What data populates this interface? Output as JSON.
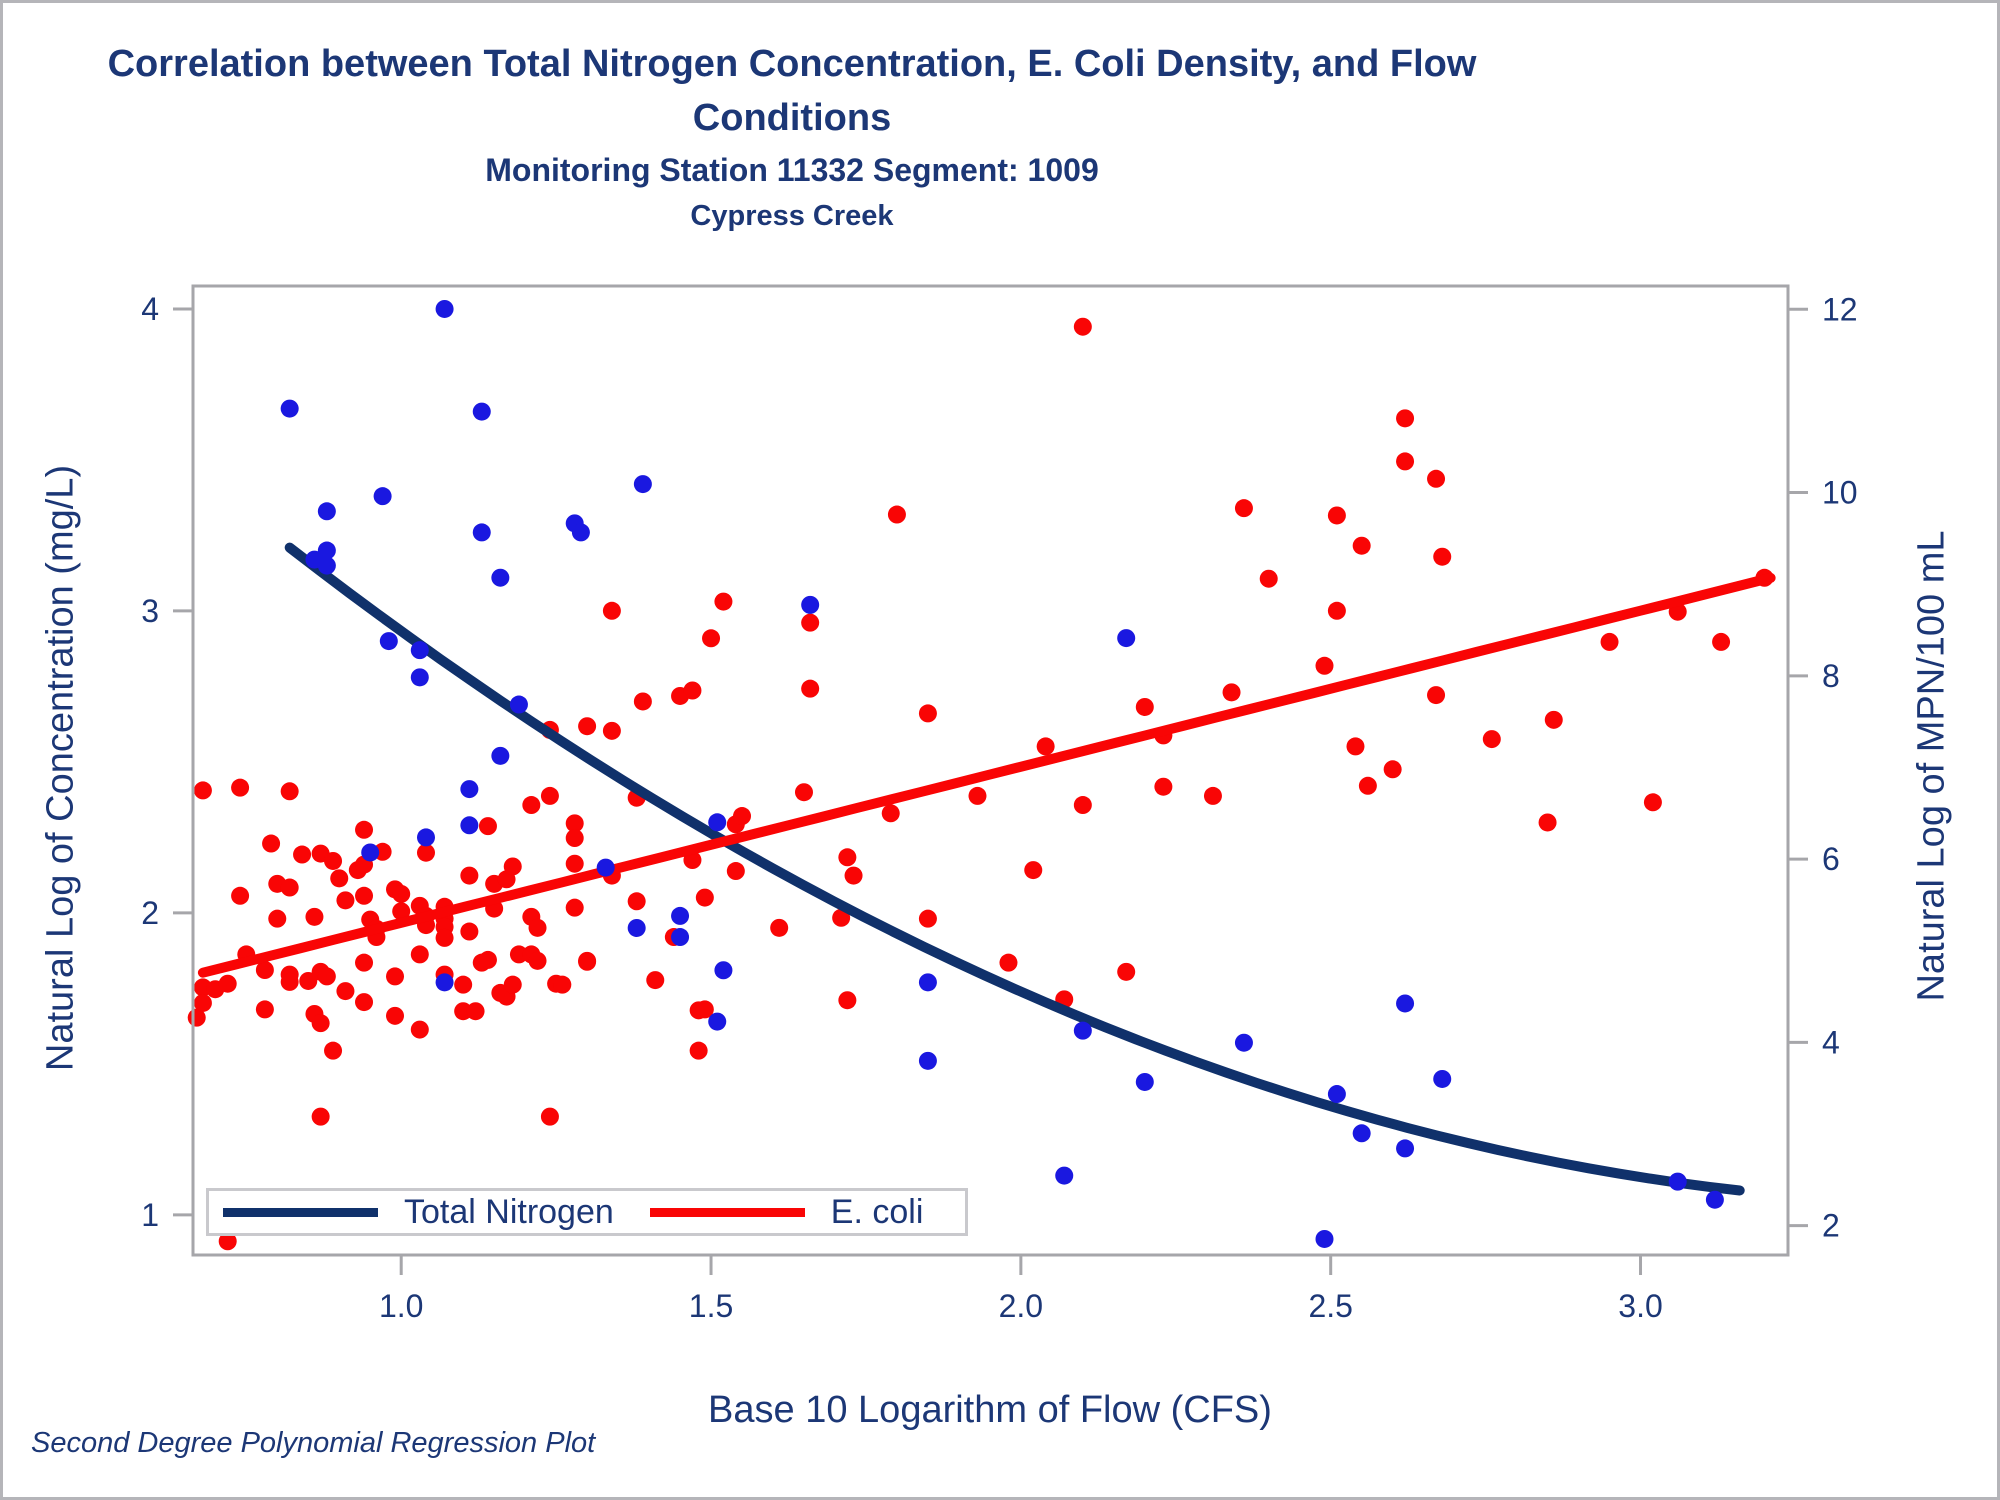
{
  "figure": {
    "title_line1": "Correlation between Total Nitrogen Concentration, E. Coli Density, and Flow",
    "title_line2": "Conditions",
    "subtitle": "Monitoring Station 11332 Segment: 1009",
    "subsubtitle": "Cypress Creek",
    "footnote": "Second Degree Polynomial Regression Plot"
  },
  "colors": {
    "text_navy": "#1c3776",
    "nitrogen_line": "#10316b",
    "nitrogen_point": "#1a18e0",
    "ecoli": "#f90505",
    "frame_gray": "#a6a6aa",
    "legend_border": "#c9c9cd"
  },
  "chart_data": {
    "type": "scatter",
    "title": "Correlation between Total Nitrogen Concentration, E. Coli Density, and Flow Conditions",
    "subtitle": "Monitoring Station 11332 Segment: 1009",
    "subsubtitle": "Cypress Creek",
    "footnote": "Second Degree Polynomial Regression Plot",
    "grid": false,
    "x_axis": {
      "label": "Base 10 Logarithm of Flow (CFS)",
      "tick_labels": [
        "1.0",
        "1.5",
        "2.0",
        "2.5",
        "3.0"
      ],
      "tick_values": [
        1.0,
        1.5,
        2.0,
        2.5,
        3.0
      ],
      "range": [
        0.664,
        3.238
      ]
    },
    "y_axis_left": {
      "label": "Natural Log of Concentration (mg/L)",
      "tick_labels": [
        "1",
        "2",
        "3",
        "4"
      ],
      "tick_values": [
        1,
        2,
        3,
        4
      ],
      "range": [
        0.867,
        4.076
      ]
    },
    "y_axis_right": {
      "label": "Natural Log of MPN/100 mL",
      "tick_labels": [
        "2",
        "4",
        "6",
        "8",
        "10",
        "12"
      ],
      "tick_values": [
        2,
        4,
        6,
        8,
        10,
        12
      ],
      "range": [
        1.68,
        12.254
      ]
    },
    "legend": {
      "position": "bottom-left-inside",
      "items": [
        "Total Nitrogen",
        "E. coli"
      ]
    },
    "series": [
      {
        "name": "Total Nitrogen",
        "axis": "left",
        "point_color": "#1a18e0",
        "line_color": "#10316b",
        "trend": {
          "type": "poly2",
          "coef": [
            4.707,
            -2.064,
            0.29
          ],
          "domain": [
            0.82,
            3.16
          ]
        },
        "points": [
          [
            1.07,
            4.0
          ],
          [
            0.82,
            3.67
          ],
          [
            1.13,
            3.66
          ],
          [
            1.39,
            3.42
          ],
          [
            0.97,
            3.38
          ],
          [
            0.88,
            3.33
          ],
          [
            1.28,
            3.29
          ],
          [
            1.29,
            3.26
          ],
          [
            1.13,
            3.26
          ],
          [
            0.88,
            3.2
          ],
          [
            0.86,
            3.17
          ],
          [
            0.88,
            3.15
          ],
          [
            1.16,
            3.11
          ],
          [
            1.66,
            3.02
          ],
          [
            2.17,
            2.91
          ],
          [
            0.98,
            2.9
          ],
          [
            1.03,
            2.87
          ],
          [
            1.03,
            2.78
          ],
          [
            1.19,
            2.69
          ],
          [
            1.16,
            2.52
          ],
          [
            1.11,
            2.41
          ],
          [
            1.51,
            2.3
          ],
          [
            1.11,
            2.29
          ],
          [
            1.04,
            2.25
          ],
          [
            0.95,
            2.2
          ],
          [
            1.33,
            2.15
          ],
          [
            1.45,
            1.99
          ],
          [
            1.38,
            1.95
          ],
          [
            1.45,
            1.92
          ],
          [
            1.52,
            1.81
          ],
          [
            1.07,
            1.77
          ],
          [
            1.85,
            1.77
          ],
          [
            2.62,
            1.7
          ],
          [
            1.51,
            1.64
          ],
          [
            2.1,
            1.61
          ],
          [
            2.36,
            1.57
          ],
          [
            1.85,
            1.51
          ],
          [
            2.68,
            1.45
          ],
          [
            2.2,
            1.44
          ],
          [
            2.51,
            1.4
          ],
          [
            2.55,
            1.27
          ],
          [
            2.62,
            1.22
          ],
          [
            2.07,
            1.13
          ],
          [
            3.06,
            1.11
          ],
          [
            3.12,
            1.05
          ],
          [
            2.49,
            0.92
          ]
        ]
      },
      {
        "name": "E. coli",
        "axis": "right",
        "point_color": "#f90505",
        "line_color": "#f90505",
        "trend": {
          "type": "poly2",
          "coef": [
            3.602,
            1.703,
            0.0
          ],
          "domain": [
            0.68,
            3.21
          ]
        },
        "points": [
          [
            0.67,
            4.27
          ],
          [
            0.68,
            6.75
          ],
          [
            0.68,
            4.6
          ],
          [
            0.68,
            4.43
          ],
          [
            0.7,
            4.58
          ],
          [
            0.72,
            4.64
          ],
          [
            0.72,
            1.83
          ],
          [
            0.74,
            6.78
          ],
          [
            0.74,
            5.6
          ],
          [
            0.75,
            4.96
          ],
          [
            0.78,
            4.79
          ],
          [
            0.78,
            4.36
          ],
          [
            0.79,
            6.17
          ],
          [
            0.8,
            5.73
          ],
          [
            0.8,
            5.35
          ],
          [
            0.82,
            6.74
          ],
          [
            0.82,
            5.69
          ],
          [
            0.82,
            4.74
          ],
          [
            0.82,
            4.66
          ],
          [
            0.84,
            6.05
          ],
          [
            0.85,
            4.67
          ],
          [
            0.86,
            5.37
          ],
          [
            0.86,
            4.31
          ],
          [
            0.87,
            6.06
          ],
          [
            0.87,
            4.77
          ],
          [
            0.87,
            4.21
          ],
          [
            0.87,
            3.19
          ],
          [
            0.88,
            4.72
          ],
          [
            0.89,
            5.98
          ],
          [
            0.89,
            3.91
          ],
          [
            0.9,
            5.79
          ],
          [
            0.91,
            5.55
          ],
          [
            0.91,
            4.56
          ],
          [
            0.93,
            5.88
          ],
          [
            0.94,
            6.32
          ],
          [
            0.94,
            5.94
          ],
          [
            0.94,
            5.6
          ],
          [
            0.94,
            4.87
          ],
          [
            0.94,
            4.44
          ],
          [
            0.95,
            5.34
          ],
          [
            0.96,
            5.24
          ],
          [
            0.96,
            5.15
          ],
          [
            0.97,
            6.08
          ],
          [
            0.99,
            5.67
          ],
          [
            0.99,
            4.72
          ],
          [
            0.99,
            4.29
          ],
          [
            1.0,
            5.62
          ],
          [
            1.0,
            5.43
          ],
          [
            1.03,
            5.49
          ],
          [
            1.03,
            4.96
          ],
          [
            1.03,
            4.14
          ],
          [
            1.04,
            6.07
          ],
          [
            1.04,
            5.38
          ],
          [
            1.04,
            5.28
          ],
          [
            1.07,
            5.48
          ],
          [
            1.07,
            5.35
          ],
          [
            1.07,
            5.26
          ],
          [
            1.07,
            5.14
          ],
          [
            1.07,
            4.74
          ],
          [
            1.1,
            4.63
          ],
          [
            1.1,
            4.34
          ],
          [
            1.11,
            5.82
          ],
          [
            1.11,
            5.21
          ],
          [
            1.12,
            4.34
          ],
          [
            1.13,
            4.87
          ],
          [
            1.14,
            6.36
          ],
          [
            1.14,
            4.9
          ],
          [
            1.15,
            5.73
          ],
          [
            1.15,
            5.46
          ],
          [
            1.16,
            4.54
          ],
          [
            1.17,
            5.78
          ],
          [
            1.17,
            4.5
          ],
          [
            1.18,
            5.92
          ],
          [
            1.18,
            4.63
          ],
          [
            1.19,
            4.96
          ],
          [
            1.21,
            6.59
          ],
          [
            1.21,
            5.37
          ],
          [
            1.21,
            4.96
          ],
          [
            1.22,
            5.25
          ],
          [
            1.22,
            4.89
          ],
          [
            1.24,
            6.69
          ],
          [
            1.24,
            7.41
          ],
          [
            1.24,
            3.19
          ],
          [
            1.25,
            4.64
          ],
          [
            1.26,
            4.63
          ],
          [
            1.28,
            6.39
          ],
          [
            1.28,
            6.23
          ],
          [
            1.28,
            5.95
          ],
          [
            1.28,
            5.47
          ],
          [
            1.3,
            7.45
          ],
          [
            1.3,
            4.89
          ],
          [
            1.3,
            4.88
          ],
          [
            1.34,
            8.71
          ],
          [
            1.34,
            7.4
          ],
          [
            1.34,
            5.82
          ],
          [
            1.38,
            6.67
          ],
          [
            1.38,
            5.54
          ],
          [
            1.39,
            7.72
          ],
          [
            1.41,
            4.68
          ],
          [
            1.44,
            5.15
          ],
          [
            1.45,
            7.78
          ],
          [
            1.47,
            5.99
          ],
          [
            1.48,
            4.35
          ],
          [
            1.48,
            3.91
          ],
          [
            1.49,
            5.58
          ],
          [
            1.49,
            4.36
          ],
          [
            1.5,
            8.41
          ],
          [
            1.47,
            7.84
          ],
          [
            1.52,
            8.81
          ],
          [
            1.54,
            6.38
          ],
          [
            1.54,
            5.87
          ],
          [
            1.55,
            6.47
          ],
          [
            1.61,
            5.25
          ],
          [
            1.65,
            6.73
          ],
          [
            1.66,
            8.58
          ],
          [
            1.66,
            7.86
          ],
          [
            1.71,
            5.36
          ],
          [
            1.72,
            6.02
          ],
          [
            1.72,
            4.46
          ],
          [
            1.73,
            5.82
          ],
          [
            1.79,
            6.5
          ],
          [
            1.8,
            9.76
          ],
          [
            1.85,
            7.59
          ],
          [
            1.85,
            5.35
          ],
          [
            1.93,
            6.69
          ],
          [
            1.98,
            4.87
          ],
          [
            2.02,
            5.88
          ],
          [
            2.04,
            7.23
          ],
          [
            2.07,
            4.47
          ],
          [
            2.1,
            11.81
          ],
          [
            2.1,
            6.59
          ],
          [
            2.17,
            4.77
          ],
          [
            2.2,
            7.66
          ],
          [
            2.23,
            7.35
          ],
          [
            2.23,
            6.79
          ],
          [
            2.31,
            6.69
          ],
          [
            2.34,
            7.82
          ],
          [
            2.36,
            9.83
          ],
          [
            2.4,
            9.06
          ],
          [
            2.49,
            8.11
          ],
          [
            2.51,
            9.75
          ],
          [
            2.51,
            8.71
          ],
          [
            2.54,
            7.23
          ],
          [
            2.55,
            9.42
          ],
          [
            2.56,
            6.8
          ],
          [
            2.6,
            6.98
          ],
          [
            2.62,
            10.81
          ],
          [
            2.62,
            10.34
          ],
          [
            2.67,
            10.15
          ],
          [
            2.67,
            7.79
          ],
          [
            2.68,
            9.3
          ],
          [
            2.76,
            7.31
          ],
          [
            2.85,
            6.4
          ],
          [
            2.86,
            7.52
          ],
          [
            2.95,
            8.37
          ],
          [
            3.02,
            6.62
          ],
          [
            3.06,
            8.7
          ],
          [
            3.13,
            8.37
          ],
          [
            3.2,
            9.07
          ]
        ]
      }
    ]
  }
}
